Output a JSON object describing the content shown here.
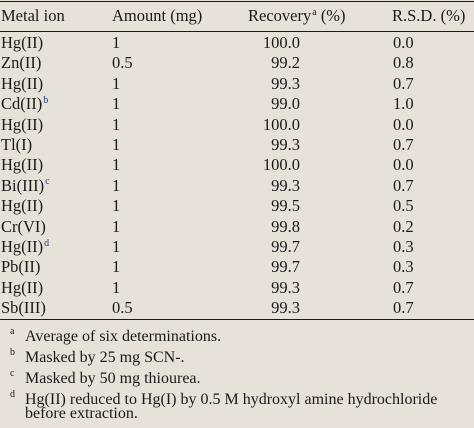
{
  "table": {
    "headers": {
      "metal_ion": "Metal ion",
      "amount": "Amount (mg)",
      "recovery": "Recovery",
      "recovery_mark": "a",
      "recovery_unit": "(%)",
      "rsd": "R.S.D. (%)"
    },
    "rows": [
      {
        "ion": "Hg(II)",
        "mark": "",
        "amount": "1",
        "recovery": "100.0",
        "rsd": "0.0"
      },
      {
        "ion": "Zn(II)",
        "mark": "",
        "amount": "0.5",
        "recovery": "99.2",
        "rsd": "0.8"
      },
      {
        "ion": "Hg(II)",
        "mark": "",
        "amount": "1",
        "recovery": "99.3",
        "rsd": "0.7"
      },
      {
        "ion": "Cd(II)",
        "mark": "b",
        "amount": "1",
        "recovery": "99.0",
        "rsd": "1.0"
      },
      {
        "ion": "Hg(II)",
        "mark": "",
        "amount": "1",
        "recovery": "100.0",
        "rsd": "0.0"
      },
      {
        "ion": "Tl(I)",
        "mark": "",
        "amount": "1",
        "recovery": "99.3",
        "rsd": "0.7"
      },
      {
        "ion": "Hg(II)",
        "mark": "",
        "amount": "1",
        "recovery": "100.0",
        "rsd": "0.0"
      },
      {
        "ion": "Bi(III)",
        "mark": "c",
        "amount": "1",
        "recovery": "99.3",
        "rsd": "0.7"
      },
      {
        "ion": "Hg(II)",
        "mark": "",
        "amount": "1",
        "recovery": "99.5",
        "rsd": "0.5"
      },
      {
        "ion": "Cr(VI)",
        "mark": "",
        "amount": "1",
        "recovery": "99.8",
        "rsd": "0.2"
      },
      {
        "ion": "Hg(II)",
        "mark": "d",
        "amount": "1",
        "recovery": "99.7",
        "rsd": "0.3"
      },
      {
        "ion": "Pb(II)",
        "mark": "",
        "amount": "1",
        "recovery": "99.7",
        "rsd": "0.3"
      },
      {
        "ion": "Hg(II)",
        "mark": "",
        "amount": "1",
        "recovery": "99.3",
        "rsd": "0.7"
      },
      {
        "ion": "Sb(III)",
        "mark": "",
        "amount": "0.5",
        "recovery": "99.3",
        "rsd": "0.7"
      }
    ]
  },
  "footnotes": [
    {
      "mark": "a",
      "text": "Average of six determinations."
    },
    {
      "mark": "b",
      "text": "Masked by 25 mg SCN-."
    },
    {
      "mark": "c",
      "text": "Masked by 50 mg thiourea."
    },
    {
      "mark": "d",
      "text": "Hg(II) reduced to Hg(I) by 0.5 M hydroxyl amine hydrochloride",
      "continuation": "before extraction."
    }
  ],
  "colors": {
    "background": "#e6e1d9",
    "text": "#1a1a1a",
    "link_mark": "#2b3a8c"
  }
}
